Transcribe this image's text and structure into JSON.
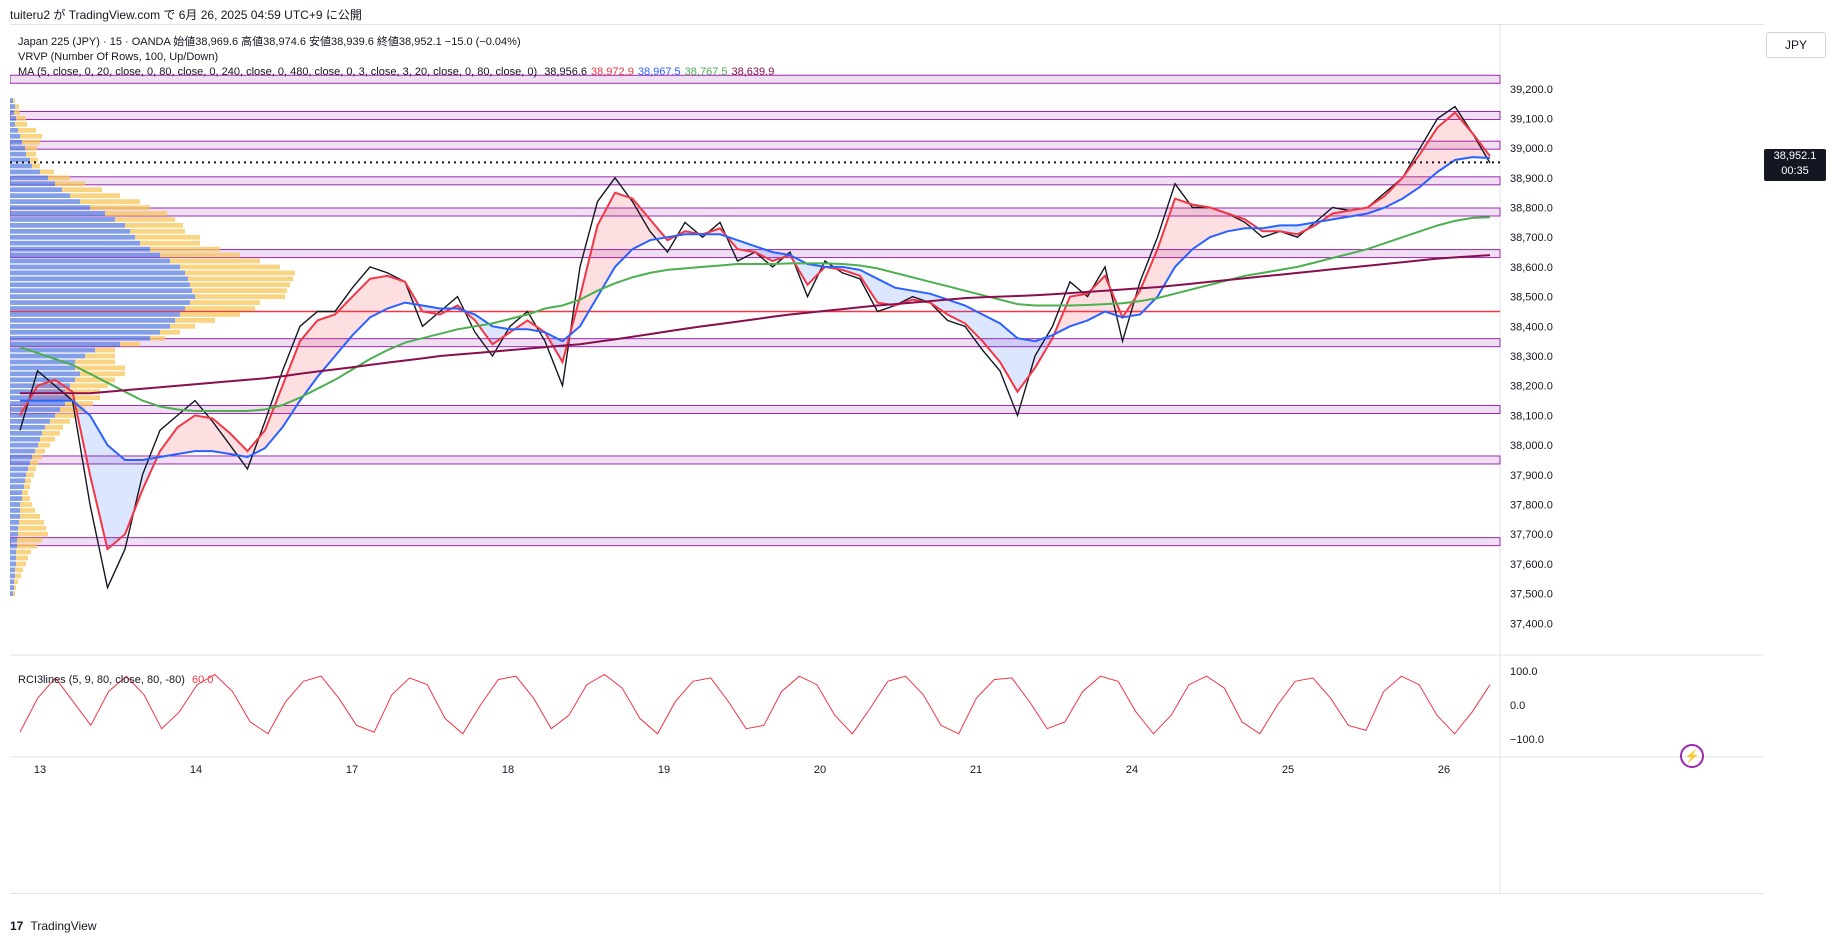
{
  "header": {
    "text": "tuiteru2 が TradingView.com で 6月 26, 2025 04:59 UTC+9 に公開"
  },
  "legend": {
    "line1": "Japan 225 (JPY) · 15 · OANDA  始値38,969.6  高値38,974.6  安値38,939.6  終値38,952.1  −15.0 (−0.04%)",
    "line2": "VRVP (Number Of Rows, 100, Up/Down)",
    "line3": "MA (5, close, 0, 20, close, 0, 80, close, 0, 240, close, 0, 480, close, 0, 3, close, 3, 20, close, 0, 80, close, 0)",
    "ma_values": [
      {
        "text": "38,956.6",
        "color": "#131722"
      },
      {
        "text": "38,972.9",
        "color": "#f23645"
      },
      {
        "text": "38,967.5",
        "color": "#2962ff"
      },
      {
        "text": "38,767.5",
        "color": "#4caf50"
      },
      {
        "text": "38,639.9",
        "color": "#880e4f"
      }
    ],
    "rci": "RCI3lines (5, 9, 80, close, 80, -80)",
    "rci_value": "60.0"
  },
  "currency": "JPY",
  "last_price": {
    "value": "38,952.1",
    "countdown": "00:35"
  },
  "footer": {
    "logo": "17",
    "text": "TradingView"
  },
  "colors": {
    "price": "#131722",
    "ma_fast": "#f23645",
    "ma_mid": "#2962ff",
    "ma_slow": "#4caf50",
    "ma_long": "#880e4f",
    "h_line_red": "#f23645",
    "zone": "#9c27b0",
    "vp_up": "#5b7fe0",
    "vp_down": "#f7c65a",
    "rci": "#f23645"
  },
  "chart_data": {
    "type": "line",
    "price_axis": {
      "min": 37300,
      "max": 39280,
      "ticks": [
        39200,
        39100,
        39000,
        38900,
        38800,
        38700,
        38600,
        38500,
        38400,
        38300,
        38200,
        38100,
        38000,
        37900,
        37800,
        37700,
        37600,
        37500,
        37400
      ]
    },
    "price_tick_labels": [
      "39,200.0",
      "39,100.0",
      "39,000.0",
      "38,900.0",
      "38,800.0",
      "38,700.0",
      "38,600.0",
      "38,500.0",
      "38,400.0",
      "38,300.0",
      "38,200.0",
      "38,100.0",
      "38,000.0",
      "37,900.0",
      "37,800.0",
      "37,700.0",
      "37,600.0",
      "37,500.0",
      "37,400.0"
    ],
    "x_labels": [
      "13",
      "14",
      "17",
      "18",
      "19",
      "20",
      "21",
      "24",
      "25",
      "26"
    ],
    "zones": [
      39232,
      39110,
      39010,
      38890,
      38785,
      38645,
      38345,
      38120,
      37950,
      37675
    ],
    "red_hline": 38450,
    "last_price_level": 38952.1,
    "series": [
      {
        "key": "price",
        "values": [
          38050,
          38250,
          38200,
          38150,
          37800,
          37520,
          37650,
          37900,
          38050,
          38100,
          38150,
          38080,
          38000,
          37920,
          38080,
          38250,
          38400,
          38450,
          38450,
          38530,
          38600,
          38580,
          38550,
          38400,
          38450,
          38500,
          38380,
          38300,
          38400,
          38450,
          38350,
          38200,
          38600,
          38820,
          38900,
          38820,
          38720,
          38650,
          38750,
          38700,
          38750,
          38620,
          38650,
          38600,
          38650,
          38500,
          38620,
          38580,
          38560,
          38450,
          38470,
          38500,
          38480,
          38420,
          38400,
          38320,
          38250,
          38100,
          38300,
          38400,
          38550,
          38500,
          38600,
          38350,
          38550,
          38700,
          38880,
          38800,
          38800,
          38780,
          38750,
          38700,
          38720,
          38700,
          38750,
          38800,
          38790,
          38800,
          38850,
          38900,
          39000,
          39100,
          39140,
          39050,
          38950
        ]
      },
      {
        "key": "ma_fast",
        "values": [
          38100,
          38200,
          38220,
          38180,
          37900,
          37650,
          37700,
          37850,
          37980,
          38060,
          38100,
          38090,
          38040,
          37980,
          38050,
          38200,
          38350,
          38420,
          38440,
          38500,
          38560,
          38570,
          38550,
          38450,
          38440,
          38470,
          38420,
          38340,
          38380,
          38420,
          38380,
          38280,
          38500,
          38740,
          38850,
          38830,
          38760,
          38690,
          38720,
          38710,
          38730,
          38660,
          38650,
          38620,
          38640,
          38540,
          38600,
          38590,
          38570,
          38480,
          38470,
          38490,
          38480,
          38440,
          38410,
          38350,
          38280,
          38180,
          38260,
          38360,
          38500,
          38510,
          38570,
          38430,
          38520,
          38660,
          38830,
          38810,
          38800,
          38780,
          38760,
          38720,
          38720,
          38710,
          38740,
          38780,
          38790,
          38800,
          38840,
          38900,
          38980,
          39070,
          39120,
          39050,
          38973
        ]
      },
      {
        "key": "ma_mid",
        "values": [
          38150,
          38150,
          38150,
          38150,
          38100,
          38000,
          37950,
          37950,
          37960,
          37970,
          37980,
          37980,
          37970,
          37960,
          37990,
          38060,
          38150,
          38230,
          38300,
          38370,
          38430,
          38460,
          38480,
          38470,
          38460,
          38460,
          38440,
          38400,
          38390,
          38390,
          38380,
          38350,
          38400,
          38500,
          38600,
          38660,
          38690,
          38700,
          38710,
          38710,
          38710,
          38690,
          38670,
          38650,
          38640,
          38610,
          38600,
          38600,
          38590,
          38560,
          38530,
          38520,
          38510,
          38490,
          38470,
          38440,
          38410,
          38360,
          38350,
          38370,
          38400,
          38420,
          38450,
          38430,
          38440,
          38500,
          38600,
          38660,
          38700,
          38720,
          38730,
          38730,
          38740,
          38740,
          38750,
          38760,
          38770,
          38780,
          38800,
          38830,
          38870,
          38920,
          38960,
          38970,
          38967
        ]
      },
      {
        "key": "ma_slow",
        "values": [
          38330,
          38310,
          38290,
          38270,
          38240,
          38210,
          38180,
          38150,
          38130,
          38120,
          38115,
          38115,
          38115,
          38115,
          38120,
          38135,
          38160,
          38190,
          38220,
          38255,
          38290,
          38320,
          38345,
          38360,
          38375,
          38390,
          38400,
          38410,
          38425,
          38440,
          38460,
          38470,
          38490,
          38520,
          38545,
          38565,
          38580,
          38590,
          38595,
          38600,
          38605,
          38610,
          38610,
          38610,
          38612,
          38612,
          38612,
          38610,
          38605,
          38595,
          38580,
          38565,
          38550,
          38535,
          38520,
          38505,
          38490,
          38475,
          38470,
          38470,
          38470,
          38472,
          38475,
          38478,
          38485,
          38495,
          38510,
          38525,
          38540,
          38555,
          38570,
          38580,
          38590,
          38600,
          38615,
          38630,
          38645,
          38660,
          38680,
          38700,
          38720,
          38740,
          38755,
          38765,
          38767
        ]
      },
      {
        "key": "ma_long",
        "values": [
          38175,
          38175,
          38175,
          38175,
          38175,
          38180,
          38185,
          38190,
          38195,
          38200,
          38205,
          38210,
          38215,
          38220,
          38225,
          38232,
          38240,
          38248,
          38255,
          38262,
          38270,
          38278,
          38285,
          38292,
          38300,
          38305,
          38310,
          38315,
          38320,
          38325,
          38330,
          38335,
          38340,
          38348,
          38356,
          38365,
          38374,
          38383,
          38392,
          38400,
          38408,
          38416,
          38424,
          38432,
          38440,
          38446,
          38452,
          38458,
          38464,
          38470,
          38475,
          38480,
          38485,
          38490,
          38495,
          38498,
          38500,
          38502,
          38505,
          38508,
          38512,
          38516,
          38520,
          38524,
          38528,
          38532,
          38538,
          38544,
          38550,
          38556,
          38562,
          38568,
          38574,
          38580,
          38586,
          38592,
          38598,
          38604,
          38610,
          38616,
          38622,
          38628,
          38632,
          38636,
          38640
        ]
      }
    ],
    "volume_profile": {
      "price_bins": [
        39160,
        39140,
        39120,
        39100,
        39080,
        39060,
        39040,
        39020,
        39000,
        38980,
        38960,
        38940,
        38920,
        38900,
        38880,
        38860,
        38840,
        38820,
        38800,
        38780,
        38760,
        38740,
        38720,
        38700,
        38680,
        38660,
        38640,
        38620,
        38600,
        38580,
        38560,
        38540,
        38520,
        38500,
        38480,
        38460,
        38440,
        38420,
        38400,
        38380,
        38360,
        38340,
        38320,
        38300,
        38280,
        38260,
        38240,
        38220,
        38200,
        38180,
        38160,
        38140,
        38120,
        38100,
        38080,
        38060,
        38040,
        38020,
        38000,
        37980,
        37960,
        37940,
        37920,
        37900,
        37880,
        37860,
        37840,
        37820,
        37800,
        37780,
        37760,
        37740,
        37720,
        37700,
        37680,
        37660,
        37640,
        37620,
        37600,
        37580,
        37560,
        37540,
        37520,
        37500
      ],
      "up": [
        3,
        5,
        4,
        6,
        5,
        8,
        10,
        12,
        15,
        16,
        20,
        22,
        30,
        38,
        45,
        52,
        60,
        70,
        80,
        95,
        105,
        115,
        120,
        125,
        130,
        140,
        150,
        160,
        170,
        175,
        178,
        180,
        182,
        185,
        180,
        175,
        170,
        165,
        160,
        150,
        140,
        110,
        85,
        75,
        65,
        65,
        70,
        65,
        60,
        55,
        60,
        55,
        50,
        45,
        40,
        35,
        32,
        30,
        28,
        25,
        22,
        20,
        18,
        16,
        15,
        14,
        12,
        12,
        10,
        10,
        10,
        9,
        8,
        8,
        7,
        7,
        6,
        6,
        6,
        5,
        5,
        4,
        4,
        3
      ],
      "down": [
        2,
        4,
        6,
        10,
        12,
        18,
        22,
        18,
        12,
        10,
        8,
        8,
        14,
        22,
        30,
        40,
        50,
        60,
        60,
        62,
        60,
        58,
        55,
        65,
        60,
        70,
        80,
        90,
        100,
        110,
        105,
        100,
        95,
        90,
        70,
        70,
        60,
        40,
        25,
        20,
        15,
        20,
        20,
        30,
        40,
        50,
        45,
        40,
        38,
        35,
        30,
        28,
        25,
        22,
        20,
        18,
        18,
        15,
        12,
        10,
        10,
        8,
        8,
        8,
        6,
        6,
        6,
        8,
        12,
        15,
        20,
        25,
        28,
        30,
        25,
        20,
        15,
        12,
        10,
        8,
        6,
        4,
        2,
        2
      ]
    },
    "rci": {
      "ticks": [
        100,
        0,
        -100
      ],
      "tick_labels": [
        "100.0",
        "0.0",
        "−100.0"
      ],
      "values": [
        -80,
        20,
        80,
        10,
        -60,
        40,
        85,
        30,
        -70,
        -20,
        60,
        90,
        40,
        -50,
        -85,
        10,
        70,
        85,
        20,
        -60,
        -80,
        30,
        80,
        60,
        -40,
        -85,
        0,
        75,
        85,
        20,
        -70,
        -30,
        60,
        90,
        50,
        -40,
        -85,
        10,
        70,
        80,
        10,
        -70,
        -60,
        40,
        85,
        60,
        -30,
        -85,
        -10,
        70,
        85,
        30,
        -60,
        -85,
        20,
        75,
        80,
        10,
        -70,
        -50,
        40,
        85,
        70,
        -20,
        -85,
        -30,
        60,
        85,
        50,
        -50,
        -85,
        0,
        70,
        80,
        20,
        -60,
        -75,
        40,
        85,
        60,
        -30,
        -85,
        -20,
        60
      ]
    }
  }
}
